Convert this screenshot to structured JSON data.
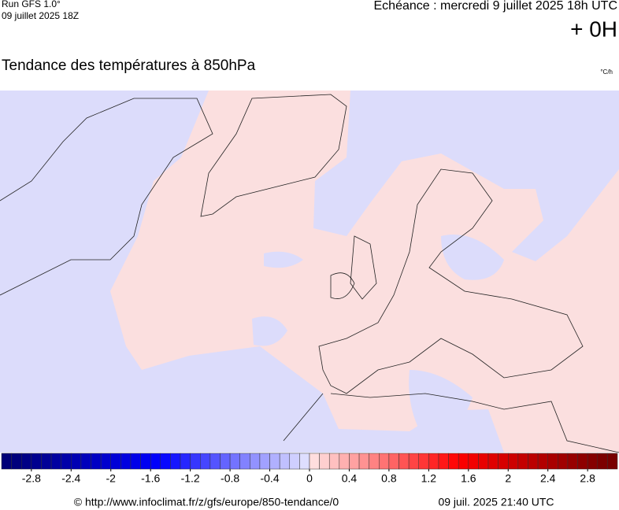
{
  "header": {
    "run": "Run GFS 1.0°",
    "run_date": "09 juillet 2025 18Z",
    "valid": "Echéance : mercredi 9 juillet 2025 18h UTC",
    "lead": "+ 0H"
  },
  "title": "Tendance des températures à 850hPa",
  "unit": "°C/h",
  "scale": {
    "min": -3.1,
    "max": 3.1,
    "step": 0.1,
    "ticks": [
      -2.8,
      -2.4,
      -2,
      -1.6,
      -1.2,
      -0.8,
      -0.4,
      0,
      0.4,
      0.8,
      1.2,
      1.6,
      2,
      2.4,
      2.8
    ]
  },
  "footer": {
    "source": "© http://www.infoclimat.fr/z/gfs/europe/850-tendance/0",
    "generated": "09 juil. 2025 21:40 UTC"
  }
}
